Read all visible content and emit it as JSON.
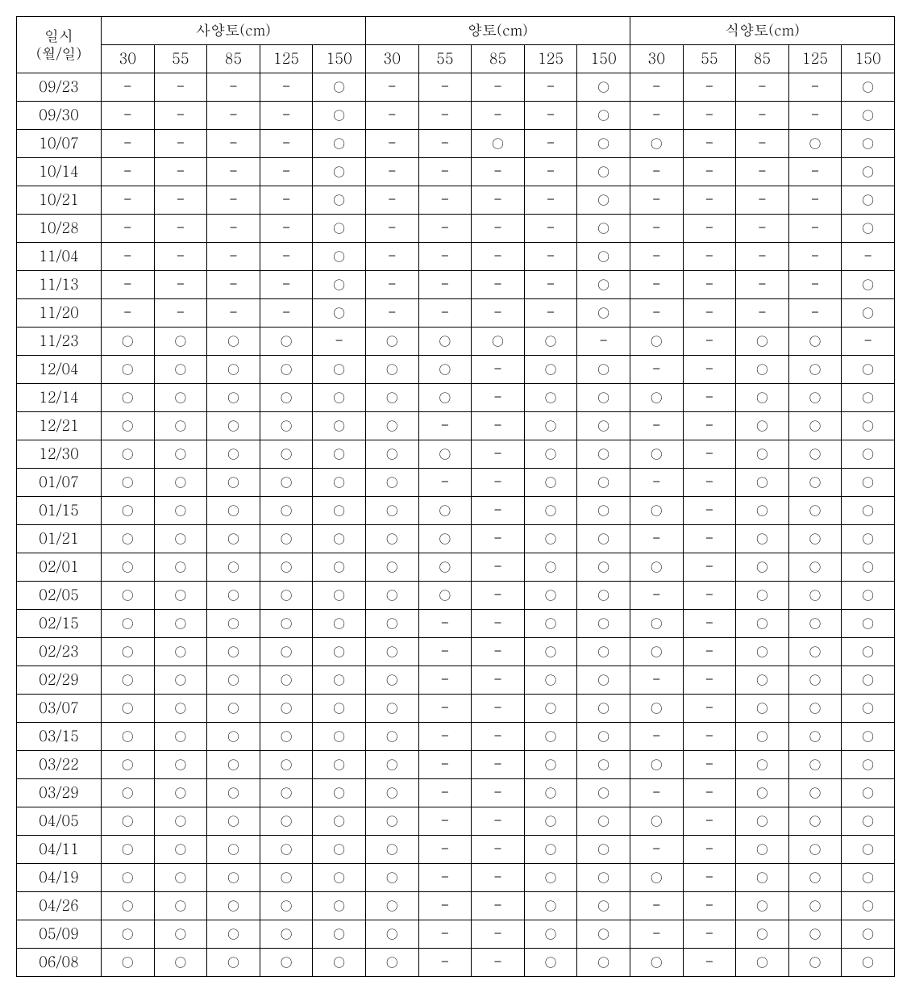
{
  "header": {
    "dateLabel1": "일시",
    "dateLabel2": "(월/일)",
    "groups": [
      "사양토(cm)",
      "양토(cm)",
      "식양토(cm)"
    ],
    "depths": [
      "30",
      "55",
      "85",
      "125",
      "150"
    ]
  },
  "symbols": {
    "circle": "○",
    "dash": "-"
  },
  "rows": [
    {
      "date": "09/23",
      "v": [
        0,
        0,
        0,
        0,
        1,
        0,
        0,
        0,
        0,
        1,
        0,
        0,
        0,
        0,
        1
      ]
    },
    {
      "date": "09/30",
      "v": [
        0,
        0,
        0,
        0,
        1,
        0,
        0,
        0,
        0,
        1,
        0,
        0,
        0,
        0,
        1
      ]
    },
    {
      "date": "10/07",
      "v": [
        0,
        0,
        0,
        0,
        1,
        0,
        0,
        1,
        0,
        1,
        1,
        0,
        0,
        1,
        1
      ]
    },
    {
      "date": "10/14",
      "v": [
        0,
        0,
        0,
        0,
        1,
        0,
        0,
        0,
        0,
        1,
        0,
        0,
        0,
        0,
        1
      ]
    },
    {
      "date": "10/21",
      "v": [
        0,
        0,
        0,
        0,
        1,
        0,
        0,
        0,
        0,
        1,
        0,
        0,
        0,
        0,
        1
      ]
    },
    {
      "date": "10/28",
      "v": [
        0,
        0,
        0,
        0,
        1,
        0,
        0,
        0,
        0,
        1,
        0,
        0,
        0,
        0,
        1
      ]
    },
    {
      "date": "11/04",
      "v": [
        0,
        0,
        0,
        0,
        1,
        0,
        0,
        0,
        0,
        1,
        0,
        0,
        0,
        0,
        0
      ]
    },
    {
      "date": "11/13",
      "v": [
        0,
        0,
        0,
        0,
        1,
        0,
        0,
        0,
        0,
        1,
        0,
        0,
        0,
        0,
        1
      ]
    },
    {
      "date": "11/20",
      "v": [
        0,
        0,
        0,
        0,
        1,
        0,
        0,
        0,
        0,
        1,
        0,
        0,
        0,
        0,
        1
      ]
    },
    {
      "date": "11/23",
      "v": [
        1,
        1,
        1,
        1,
        0,
        1,
        1,
        1,
        1,
        0,
        1,
        0,
        1,
        1,
        0
      ]
    },
    {
      "date": "12/04",
      "v": [
        1,
        1,
        1,
        1,
        1,
        1,
        1,
        0,
        1,
        1,
        0,
        0,
        1,
        1,
        1
      ]
    },
    {
      "date": "12/14",
      "v": [
        1,
        1,
        1,
        1,
        1,
        1,
        1,
        0,
        1,
        1,
        1,
        0,
        1,
        1,
        1
      ]
    },
    {
      "date": "12/21",
      "v": [
        1,
        1,
        1,
        1,
        1,
        1,
        0,
        0,
        1,
        1,
        0,
        0,
        1,
        1,
        1
      ]
    },
    {
      "date": "12/30",
      "v": [
        1,
        1,
        1,
        1,
        1,
        1,
        1,
        0,
        1,
        1,
        1,
        0,
        1,
        1,
        1
      ]
    },
    {
      "date": "01/07",
      "v": [
        1,
        1,
        1,
        1,
        1,
        1,
        0,
        0,
        1,
        1,
        0,
        0,
        1,
        1,
        1
      ]
    },
    {
      "date": "01/15",
      "v": [
        1,
        1,
        1,
        1,
        1,
        1,
        1,
        0,
        1,
        1,
        1,
        0,
        1,
        1,
        1
      ]
    },
    {
      "date": "01/21",
      "v": [
        1,
        1,
        1,
        1,
        1,
        1,
        1,
        0,
        1,
        1,
        0,
        0,
        1,
        1,
        1
      ]
    },
    {
      "date": "02/01",
      "v": [
        1,
        1,
        1,
        1,
        1,
        1,
        1,
        0,
        1,
        1,
        1,
        0,
        1,
        1,
        1
      ]
    },
    {
      "date": "02/05",
      "v": [
        1,
        1,
        1,
        1,
        1,
        1,
        1,
        0,
        1,
        1,
        0,
        0,
        1,
        1,
        1
      ]
    },
    {
      "date": "02/15",
      "v": [
        1,
        1,
        1,
        1,
        1,
        1,
        0,
        0,
        1,
        1,
        1,
        0,
        1,
        1,
        1
      ]
    },
    {
      "date": "02/23",
      "v": [
        1,
        1,
        1,
        1,
        1,
        1,
        0,
        0,
        1,
        1,
        1,
        0,
        1,
        1,
        1
      ]
    },
    {
      "date": "02/29",
      "v": [
        1,
        1,
        1,
        1,
        1,
        1,
        0,
        0,
        1,
        1,
        0,
        0,
        1,
        1,
        1
      ]
    },
    {
      "date": "03/07",
      "v": [
        1,
        1,
        1,
        1,
        1,
        1,
        0,
        0,
        1,
        1,
        1,
        0,
        1,
        1,
        1
      ]
    },
    {
      "date": "03/15",
      "v": [
        1,
        1,
        1,
        1,
        1,
        1,
        0,
        0,
        1,
        1,
        0,
        0,
        1,
        1,
        1
      ]
    },
    {
      "date": "03/22",
      "v": [
        1,
        1,
        1,
        1,
        1,
        1,
        0,
        0,
        1,
        1,
        1,
        0,
        1,
        1,
        1
      ]
    },
    {
      "date": "03/29",
      "v": [
        1,
        1,
        1,
        1,
        1,
        1,
        0,
        0,
        1,
        1,
        0,
        0,
        1,
        1,
        1
      ]
    },
    {
      "date": "04/05",
      "v": [
        1,
        1,
        1,
        1,
        1,
        1,
        0,
        0,
        1,
        1,
        1,
        0,
        1,
        1,
        1
      ]
    },
    {
      "date": "04/11",
      "v": [
        1,
        1,
        1,
        1,
        1,
        1,
        0,
        0,
        1,
        1,
        0,
        0,
        1,
        1,
        1
      ]
    },
    {
      "date": "04/19",
      "v": [
        1,
        1,
        1,
        1,
        1,
        1,
        0,
        0,
        1,
        1,
        1,
        0,
        1,
        1,
        1
      ]
    },
    {
      "date": "04/26",
      "v": [
        1,
        1,
        1,
        1,
        1,
        1,
        0,
        0,
        1,
        1,
        0,
        0,
        1,
        1,
        1
      ]
    },
    {
      "date": "05/09",
      "v": [
        1,
        1,
        1,
        1,
        1,
        1,
        0,
        0,
        1,
        1,
        0,
        0,
        1,
        1,
        1
      ]
    },
    {
      "date": "06/08",
      "v": [
        1,
        1,
        1,
        1,
        1,
        1,
        0,
        0,
        1,
        1,
        1,
        0,
        1,
        1,
        1
      ]
    }
  ]
}
